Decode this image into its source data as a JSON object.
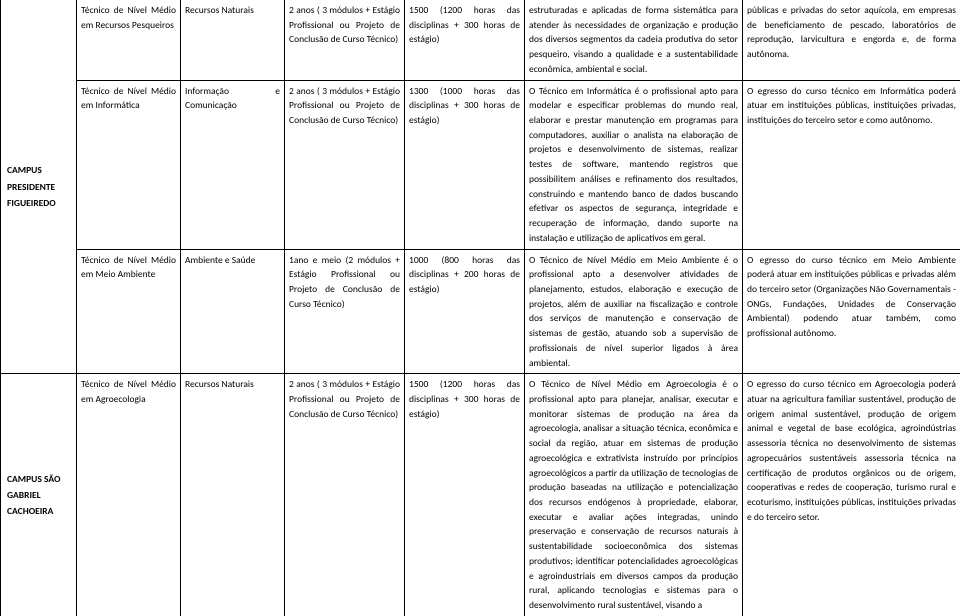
{
  "campus1": {
    "name": "CAMPUS PRESIDENTE FIGUEIREDO"
  },
  "campus2": {
    "name": "CAMPUS SÃO GABRIEL CACHOEIRA"
  },
  "rows": {
    "r1": {
      "curso": "Técnico de Nível Médio em Recursos Pesqueiros",
      "eixo": "Recursos Naturais",
      "duracao": "2 anos ( 3 módulos + Estágio Profissional ou Projeto de Conclusão de Curso Técnico)",
      "carga": "1500 (1200 horas das disciplinas + 300 horas de estágio)",
      "perfil": "estruturadas e aplicadas de forma sistemática para atender às necessidades de organização e produção dos diversos segmentos da cadeia produtiva do setor pesqueiro, visando a qualidade e a sustentabilidade econômica, ambiental e social.",
      "atuacao": "públicas e privadas do setor aquícola, em empresas de beneficiamento de pescado, laboratórios de reprodução, larvicultura e engorda e, de forma autônoma."
    },
    "r2": {
      "curso": "Técnico de Nível Médio em Informática",
      "eixo": "Informação e Comunicação",
      "duracao": "2 anos ( 3 módulos + Estágio Profissional ou Projeto de Conclusão de Curso Técnico)",
      "carga": "1300 (1000 horas das disciplinas + 300 horas de estágio)",
      "perfil": "O Técnico em Informática é o profissional apto para modelar e especificar problemas do mundo real, elaborar e prestar manutenção em programas para computadores, auxiliar o analista na elaboração de projetos e desenvolvimento de sistemas, realizar testes de software, mantendo registros que possibilitem análises e refinamento dos resultados, construindo e mantendo banco de dados buscando efetivar os aspectos de segurança, integridade e recuperação de informação, dando suporte na instalação e utilização de aplicativos em geral.",
      "atuacao": "O egresso do curso técnico em Informática poderá atuar em instituições públicas, instituições privadas, instituições do terceiro setor e como autônomo."
    },
    "r3": {
      "curso": "Técnico de Nível Médio em Meio Ambiente",
      "eixo": "Ambiente e Saúde",
      "duracao": "1ano e meio (2 módulos + Estágio Profissional ou Projeto de Conclusão de Curso Técnico)",
      "carga": "1000 (800 horas das disciplinas + 200 horas de estágio)",
      "perfil": "O Técnico de Nível Médio em Meio Ambiente é o profissional apto a desenvolver atividades de planejamento, estudos, elaboração e execução de projetos, além de auxiliar na fiscalização e controle dos serviços de manutenção e conservação de sistemas de gestão, atuando sob a supervisão de profissionais de nível superior ligados à área ambiental.",
      "atuacao": "O egresso do curso técnico em Meio Ambiente poderá atuar em instituições públicas e privadas além do terceiro setor (Organizações Não Governamentais - ONGs, Fundações, Unidades de Conservação Ambiental) podendo atuar também, como profissional autônomo."
    },
    "r4": {
      "curso": "Técnico de Nível Médio em Agroecologia",
      "eixo": "Recursos Naturais",
      "duracao": "2 anos ( 3 módulos + Estágio Profissional ou Projeto de Conclusão de Curso Técnico)",
      "carga": "1500 (1200 horas das disciplinas + 300 horas de estágio)",
      "perfil": "O Técnico de Nível Médio em Agroecologia é o profissional apto para planejar, analisar, executar e monitorar sistemas de produção na área da agroecologia, analisar a situação técnica, econômica e social da região, atuar em sistemas de produção agroecológica e extrativista instruído por princípios agroecológicos a partir da utilização de tecnologias de produção baseadas na utilização e potencialização dos recursos endógenos à propriedade, elaborar, executar e avaliar ações integradas, unindo preservação e conservação de recursos naturais à sustentabilidade socioeconômica dos sistemas produtivos; identificar potencialidades agroecológicas e agroindustriais em diversos campos da produção rural, aplicando tecnologias e sistemas para o desenvolvimento rural sustentável, visando a",
      "atuacao": "O egresso do curso técnico em Agroecologia poderá atuar na agricultura familiar sustentável, produção de origem animal sustentável, produção de origem animal e vegetal de base ecológica, agroindústrias assessoria técnica no desenvolvimento de sistemas agropecuários sustentáveis assessoria técnica na certificação de produtos orgânicos ou de origem, cooperativas e redes de cooperação, turismo rural e ecoturismo, instituições públicas, instituições privadas e do terceiro setor."
    }
  }
}
